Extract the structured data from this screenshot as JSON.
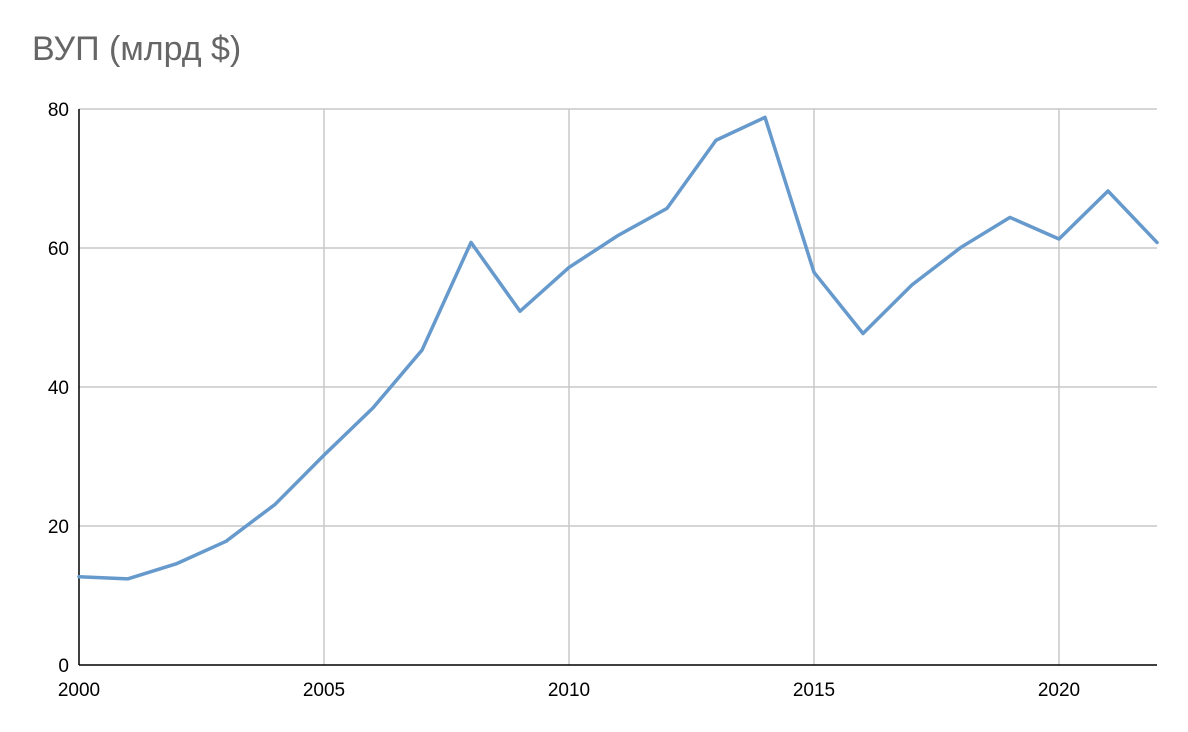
{
  "chart_data": {
    "type": "line",
    "title": "ВУП (млрд $)",
    "xlabel": "",
    "ylabel": "",
    "xlim": [
      2000,
      2022
    ],
    "ylim": [
      0,
      80
    ],
    "x_ticks": [
      2000,
      2005,
      2010,
      2015,
      2020
    ],
    "y_ticks": [
      0,
      20,
      40,
      60,
      80
    ],
    "grid": true,
    "legend": "none",
    "series": [
      {
        "color": "#6699cc",
        "x": [
          2000,
          2001,
          2002,
          2003,
          2004,
          2005,
          2006,
          2007,
          2008,
          2009,
          2010,
          2011,
          2012,
          2013,
          2014,
          2015,
          2016,
          2017,
          2018,
          2019,
          2020,
          2021,
          2022
        ],
        "values": [
          12.7,
          12.4,
          14.6,
          17.8,
          23.1,
          30.2,
          37.0,
          45.3,
          60.8,
          50.9,
          57.2,
          61.8,
          65.7,
          75.5,
          78.8,
          56.5,
          47.7,
          54.7,
          60.1,
          64.4,
          61.3,
          68.2,
          60.8
        ]
      }
    ]
  }
}
